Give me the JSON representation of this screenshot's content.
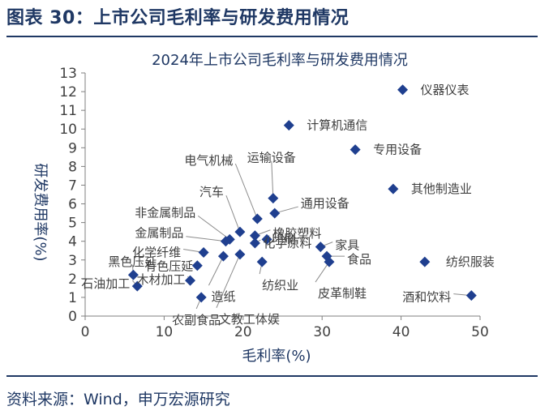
{
  "figure": {
    "title": "图表 30：上市公司毛利率与研发费用情况",
    "source": "资料来源：Wind，申万宏源研究"
  },
  "colors": {
    "marker": "#1f3f8f",
    "title_blue": "#1f3864",
    "axis": "#7f7f7f"
  },
  "chart_data": {
    "type": "scatter",
    "title": "2024年上市公司毛利率与研发费用情况",
    "xlabel": "毛利率(%)",
    "ylabel": "研发费用率(%)",
    "xlim": [
      0,
      50
    ],
    "ylim": [
      0,
      13
    ],
    "xticks": [
      0,
      10,
      20,
      30,
      40,
      50
    ],
    "yticks": [
      0,
      1,
      2,
      3,
      4,
      5,
      6,
      7,
      8,
      9,
      10,
      11,
      12,
      13
    ],
    "grid": false,
    "points": [
      {
        "label": "仪器仪表",
        "x": 40.2,
        "y": 12.1
      },
      {
        "label": "计算机通信",
        "x": 25.8,
        "y": 10.2
      },
      {
        "label": "专用设备",
        "x": 34.2,
        "y": 8.9
      },
      {
        "label": "其他制造业",
        "x": 39.0,
        "y": 6.8
      },
      {
        "label": "电气机械",
        "x": 21.8,
        "y": 5.2
      },
      {
        "label": "运输设备",
        "x": 23.8,
        "y": 6.3
      },
      {
        "label": "通用设备",
        "x": 24.0,
        "y": 5.5
      },
      {
        "label": "汽车",
        "x": 19.6,
        "y": 4.5
      },
      {
        "label": "橡胶塑料",
        "x": 21.5,
        "y": 4.3
      },
      {
        "label": "非金属制品",
        "x": 18.3,
        "y": 4.1
      },
      {
        "label": "金属制品",
        "x": 17.8,
        "y": 4.0
      },
      {
        "label": "印刷",
        "x": 23.0,
        "y": 4.1
      },
      {
        "label": "化学纤维",
        "x": 15.0,
        "y": 3.4
      },
      {
        "label": "家具",
        "x": 29.8,
        "y": 3.7
      },
      {
        "label": "化学原料",
        "x": 21.5,
        "y": 3.9
      },
      {
        "label": "纺织服装",
        "x": 43.0,
        "y": 2.9
      },
      {
        "label": "食品",
        "x": 30.6,
        "y": 3.2
      },
      {
        "label": "皮革制鞋",
        "x": 30.9,
        "y": 2.9
      },
      {
        "label": "造纸",
        "x": 17.5,
        "y": 3.2
      },
      {
        "label": "纺织业",
        "x": 22.4,
        "y": 2.9
      },
      {
        "label": "文教工体娱",
        "x": 19.6,
        "y": 3.3
      },
      {
        "label": "有色压延",
        "x": 14.2,
        "y": 2.7
      },
      {
        "label": "黑色压延",
        "x": 6.1,
        "y": 2.2
      },
      {
        "label": "木材加工",
        "x": 13.3,
        "y": 1.9
      },
      {
        "label": "石油加工",
        "x": 6.6,
        "y": 1.6
      },
      {
        "label": "农副食品",
        "x": 14.7,
        "y": 1.0
      },
      {
        "label": "酒和饮料",
        "x": 48.9,
        "y": 1.1
      }
    ]
  }
}
